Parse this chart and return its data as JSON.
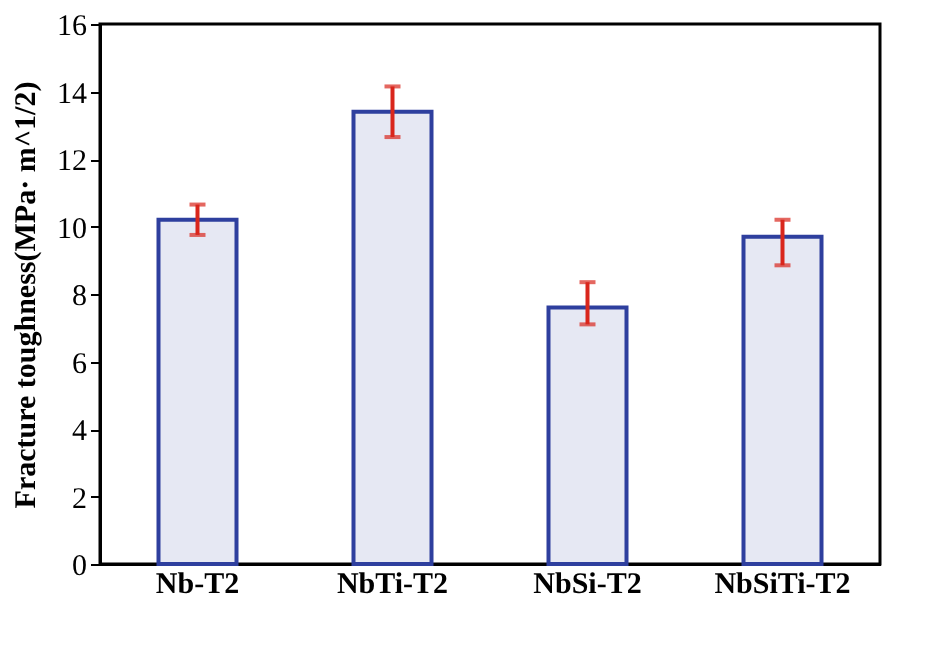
{
  "chart_data": {
    "type": "bar",
    "ylabel": "Fracture toughness(MPa· m^1/2)",
    "categories": [
      "Nb-T2",
      "NbTi-T2",
      "NbSi-T2",
      "NbSiTi-T2"
    ],
    "values": [
      10.2,
      13.4,
      7.6,
      9.7
    ],
    "errors": [
      [
        9.75,
        10.65
      ],
      [
        12.65,
        14.15
      ],
      [
        7.1,
        8.35
      ],
      [
        8.85,
        10.2
      ]
    ],
    "color": "#2e3f9e",
    "ylim": [
      0,
      16
    ],
    "yticks": [
      0,
      2,
      4,
      6,
      8,
      10,
      12,
      14,
      16
    ],
    "grid": false
  }
}
